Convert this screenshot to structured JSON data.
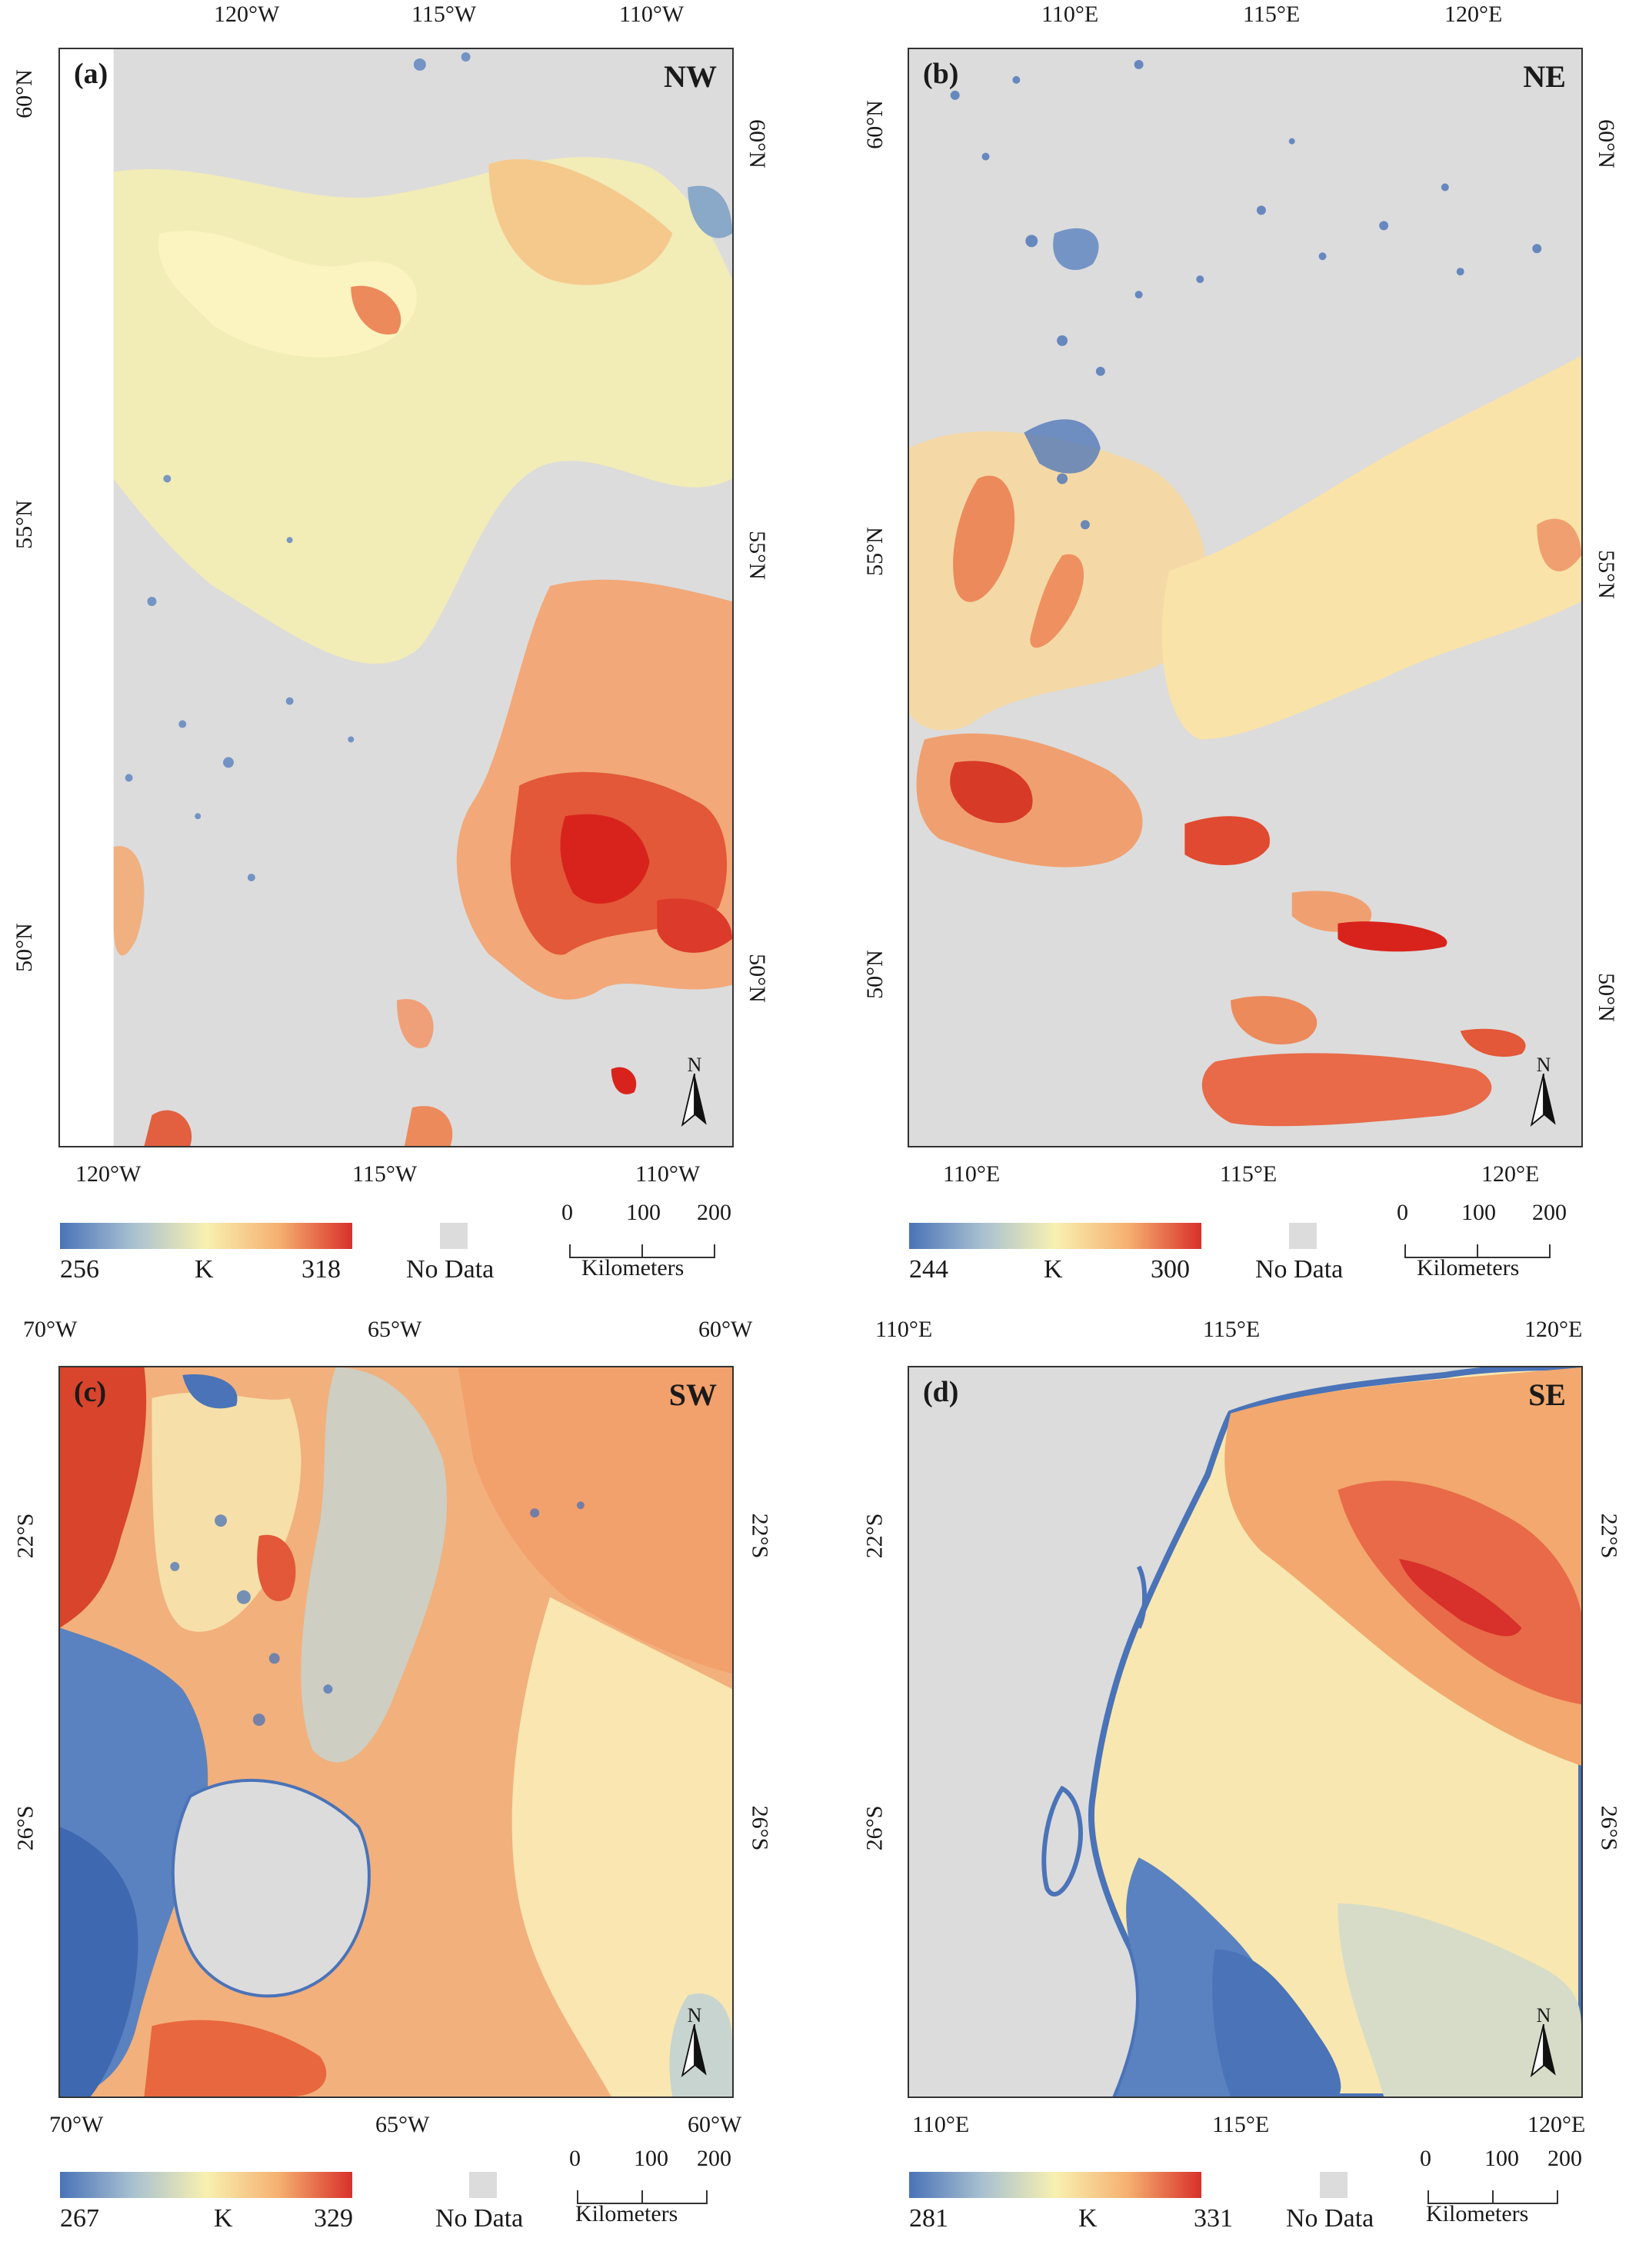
{
  "panels": [
    {
      "id": "a",
      "label": "(a)",
      "region": "NW",
      "top_ticks": [
        "120°W",
        "115°W",
        "110°W"
      ],
      "bottom_ticks": [
        "120°W",
        "115°W",
        "110°W"
      ],
      "left_ticks": [
        "60°N",
        "55°N",
        "50°N"
      ],
      "right_ticks": [
        "60°N",
        "55°N",
        "50°N"
      ],
      "legend": {
        "min": "256",
        "unit": "K",
        "max": "318",
        "nodata": "No Data"
      },
      "scale": {
        "ticks": [
          "0",
          "100",
          "200"
        ],
        "unit": "Kilometers"
      },
      "north": "N"
    },
    {
      "id": "b",
      "label": "(b)",
      "region": "NE",
      "top_ticks": [
        "110°E",
        "115°E",
        "120°E"
      ],
      "bottom_ticks": [
        "110°E",
        "115°E",
        "120°E"
      ],
      "left_ticks": [
        "60°N",
        "55°N",
        "50°N"
      ],
      "right_ticks": [
        "60°N",
        "55°N",
        "50°N"
      ],
      "legend": {
        "min": "244",
        "unit": "K",
        "max": "300",
        "nodata": "No Data"
      },
      "scale": {
        "ticks": [
          "0",
          "100",
          "200"
        ],
        "unit": "Kilometers"
      },
      "north": "N"
    },
    {
      "id": "c",
      "label": "(c)",
      "region": "SW",
      "top_ticks": [
        "70°W",
        "65°W",
        "60°W"
      ],
      "bottom_ticks": [
        "70°W",
        "65°W",
        "60°W"
      ],
      "left_ticks": [
        "22°S",
        "26°S"
      ],
      "right_ticks": [
        "22°S",
        "26°S"
      ],
      "legend": {
        "min": "267",
        "unit": "K",
        "max": "329",
        "nodata": "No Data"
      },
      "scale": {
        "ticks": [
          "0",
          "100",
          "200"
        ],
        "unit": "Kilometers"
      },
      "north": "N"
    },
    {
      "id": "d",
      "label": "(d)",
      "region": "SE",
      "top_ticks": [
        "110°E",
        "115°E",
        "120°E"
      ],
      "bottom_ticks": [
        "110°E",
        "115°E",
        "120°E"
      ],
      "left_ticks": [
        "22°S",
        "26°S"
      ],
      "right_ticks": [
        "22°S",
        "26°S"
      ],
      "legend": {
        "min": "281",
        "unit": "K",
        "max": "331",
        "nodata": "No Data"
      },
      "scale": {
        "ticks": [
          "0",
          "100",
          "200"
        ],
        "unit": "Kilometers"
      },
      "north": "N"
    }
  ],
  "colors": {
    "cold": "#4a73b8",
    "mid": "#f8f0b0",
    "hot": "#d8302a",
    "nodata": "#dcdcdc"
  }
}
